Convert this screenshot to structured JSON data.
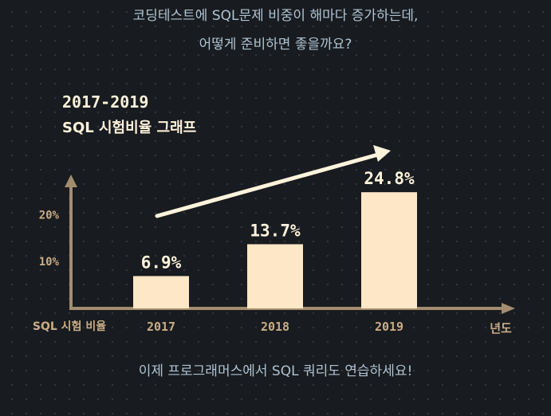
{
  "intro": {
    "line1": "코딩테스트에 SQL문제 비중이 해마다 증가하는데,",
    "line2": "어떻게 준비하면 좋을까요?"
  },
  "chart_title": {
    "line1": "2017-2019",
    "line2": "SQL 시험비율 그래프"
  },
  "chart_data": {
    "type": "bar",
    "title": "2017-2019 SQL 시험비율 그래프",
    "categories": [
      "2017",
      "2018",
      "2019"
    ],
    "values": [
      6.9,
      13.7,
      24.8
    ],
    "value_labels": [
      "6.9%",
      "13.7%",
      "24.8%"
    ],
    "ylabel": "SQL 시험 비율",
    "xlabel": "년도",
    "yticks": [
      "10%",
      "20%"
    ],
    "ytick_values": [
      10,
      20
    ],
    "ylim": [
      0,
      30
    ],
    "grid": false,
    "annotation": "upward trend arrow"
  },
  "colors": {
    "background": "#181b1f",
    "bar": "#fde7c6",
    "axis": "#a48d6f",
    "axis_label": "#c9ad86",
    "title": "#fff3dc",
    "intro_text": "#aec3d2"
  },
  "footer": {
    "text": "이제 프로그래머스에서 SQL 쿼리도 연습하세요!"
  }
}
